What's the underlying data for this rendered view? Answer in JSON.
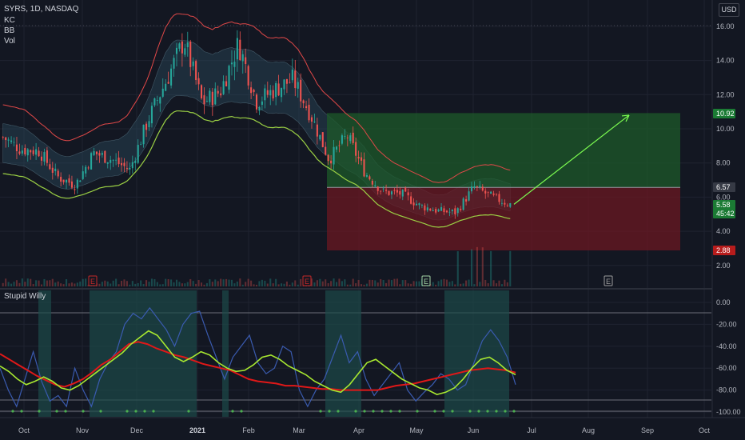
{
  "header": {
    "symbol_line": "SYRS, 1D, NASDAQ",
    "indicators": [
      "KC",
      "BB",
      "Vol"
    ],
    "currency_button": "USD",
    "oscillator_name": "Stupid Willy"
  },
  "colors": {
    "background": "#131722",
    "grid": "#1f2330",
    "candle_up": "#26a69a",
    "candle_down": "#ef5350",
    "kc_upper": "#e04848",
    "kc_lower": "#9bd044",
    "bb_fill": "#2a4a5c",
    "profit_zone": "#1e5a2a",
    "loss_zone": "#6b1822",
    "arrow": "#7cfc50",
    "osc_blue": "#3a5bb0",
    "osc_green": "#a8e830",
    "osc_red": "#e01818",
    "osc_band": "#1d4a48"
  },
  "chart_data": [
    {
      "type": "candlestick",
      "title": "SYRS, 1D, NASDAQ",
      "x_ticks": [
        "Oct",
        "Nov",
        "Dec",
        "2021",
        "Feb",
        "Mar",
        "Apr",
        "May",
        "Jun",
        "Jul",
        "Aug",
        "Sep",
        "Oct"
      ],
      "y_ticks": [
        "16.00",
        "14.00",
        "12.00",
        "10.00",
        "8.00",
        "6.00",
        "4.00",
        "2.00"
      ],
      "ylim": [
        0.8,
        16.6
      ],
      "price_labels": [
        {
          "text": "10.92",
          "value": 10.92,
          "color": "#1b7b34"
        },
        {
          "text": "6.57",
          "value": 6.57,
          "color": "#363a45"
        },
        {
          "text": "5.58",
          "value": 5.58,
          "color": "#1b7b34"
        },
        {
          "text": "45:42",
          "value": 4.9,
          "color": "#1b7b34"
        },
        {
          "text": "2.88",
          "value": 2.88,
          "color": "#b71c1c"
        }
      ],
      "close_series": [
        {
          "month": "Oct",
          "value": 9.5
        },
        {
          "month": "Oct",
          "value": 8.8
        },
        {
          "month": "Oct",
          "value": 8.7
        },
        {
          "month": "Nov",
          "value": 7.2
        },
        {
          "month": "Nov",
          "value": 6.7
        },
        {
          "month": "Nov",
          "value": 8.6
        },
        {
          "month": "Dec",
          "value": 8.2
        },
        {
          "month": "Dec",
          "value": 7.6
        },
        {
          "month": "Dec",
          "value": 10.5
        },
        {
          "month": "Dec",
          "value": 12.8
        },
        {
          "month": "Dec",
          "value": 15.2
        },
        {
          "month": "2021",
          "value": 11.5
        },
        {
          "month": "2021",
          "value": 12.2
        },
        {
          "month": "2021",
          "value": 15.0
        },
        {
          "month": "Feb",
          "value": 11.6
        },
        {
          "month": "Feb",
          "value": 12.3
        },
        {
          "month": "Feb",
          "value": 12.9
        },
        {
          "month": "Mar",
          "value": 10.8
        },
        {
          "month": "Mar",
          "value": 8.2
        },
        {
          "month": "Mar",
          "value": 9.6
        },
        {
          "month": "Apr",
          "value": 7.4
        },
        {
          "month": "Apr",
          "value": 6.3
        },
        {
          "month": "Apr",
          "value": 6.2
        },
        {
          "month": "May",
          "value": 5.5
        },
        {
          "month": "May",
          "value": 5.2
        },
        {
          "month": "May",
          "value": 5.1
        },
        {
          "month": "Jun",
          "value": 6.6
        },
        {
          "month": "Jun",
          "value": 6.0
        },
        {
          "month": "Jun",
          "value": 5.58
        }
      ],
      "drawings": {
        "long_position": {
          "entry": 6.57,
          "target": 10.92,
          "stop": 2.88,
          "from_month": "Mar",
          "to_month": "Aug"
        },
        "projection_arrow": {
          "from": 5.58,
          "to": 10.8,
          "from_month": "Jun",
          "to_month": "Aug"
        }
      },
      "earnings_markers": [
        "E",
        "E",
        "E",
        "E"
      ]
    },
    {
      "type": "line",
      "title": "Stupid Willy",
      "y_ticks": [
        "0.00",
        "-20.00",
        "-40.00",
        "-60.00",
        "-80.00",
        "-100.00"
      ],
      "ylim": [
        -103,
        5
      ],
      "series_blue": [
        -60,
        -80,
        -95,
        -70,
        -45,
        -72,
        -90,
        -85,
        -95,
        -60,
        -80,
        -95,
        -70,
        -55,
        -45,
        -20,
        -10,
        -15,
        -5,
        -15,
        -25,
        -40,
        -20,
        -10,
        -8,
        -30,
        -50,
        -70,
        -50,
        -40,
        -30,
        -55,
        -65,
        -60,
        -40,
        -45,
        -80,
        -95,
        -80,
        -70,
        -50,
        -30,
        -55,
        -45,
        -70,
        -85,
        -75,
        -65,
        -55,
        -80,
        -90,
        -82,
        -75,
        -65,
        -70,
        -80,
        -75,
        -55,
        -35,
        -25,
        -35,
        -50,
        -75
      ],
      "series_green": [
        -58,
        -63,
        -70,
        -75,
        -72,
        -68,
        -72,
        -78,
        -80,
        -76,
        -70,
        -64,
        -58,
        -52,
        -46,
        -38,
        -32,
        -26,
        -30,
        -40,
        -50,
        -54,
        -50,
        -45,
        -48,
        -55,
        -60,
        -63,
        -62,
        -57,
        -50,
        -48,
        -52,
        -58,
        -62,
        -66,
        -72,
        -76,
        -80,
        -82,
        -75,
        -65,
        -55,
        -52,
        -58,
        -64,
        -70,
        -74,
        -78,
        -80,
        -84,
        -82,
        -78,
        -70,
        -60,
        -52,
        -50,
        -55,
        -62,
        -66
      ],
      "series_red": [
        -47,
        -52,
        -57,
        -62,
        -67,
        -71,
        -75,
        -77,
        -74,
        -70,
        -64,
        -57,
        -52,
        -45,
        -38,
        -36,
        -38,
        -42,
        -45,
        -48,
        -50,
        -53,
        -56,
        -58,
        -60,
        -62,
        -66,
        -70,
        -72,
        -73,
        -74,
        -76,
        -76,
        -77,
        -78,
        -79,
        -79,
        -80,
        -80,
        -80,
        -80,
        -80,
        -78,
        -76,
        -75,
        -74,
        -72,
        -70,
        -68,
        -66,
        -64,
        -62,
        -61,
        -60,
        -61,
        -62,
        -64
      ]
    }
  ]
}
